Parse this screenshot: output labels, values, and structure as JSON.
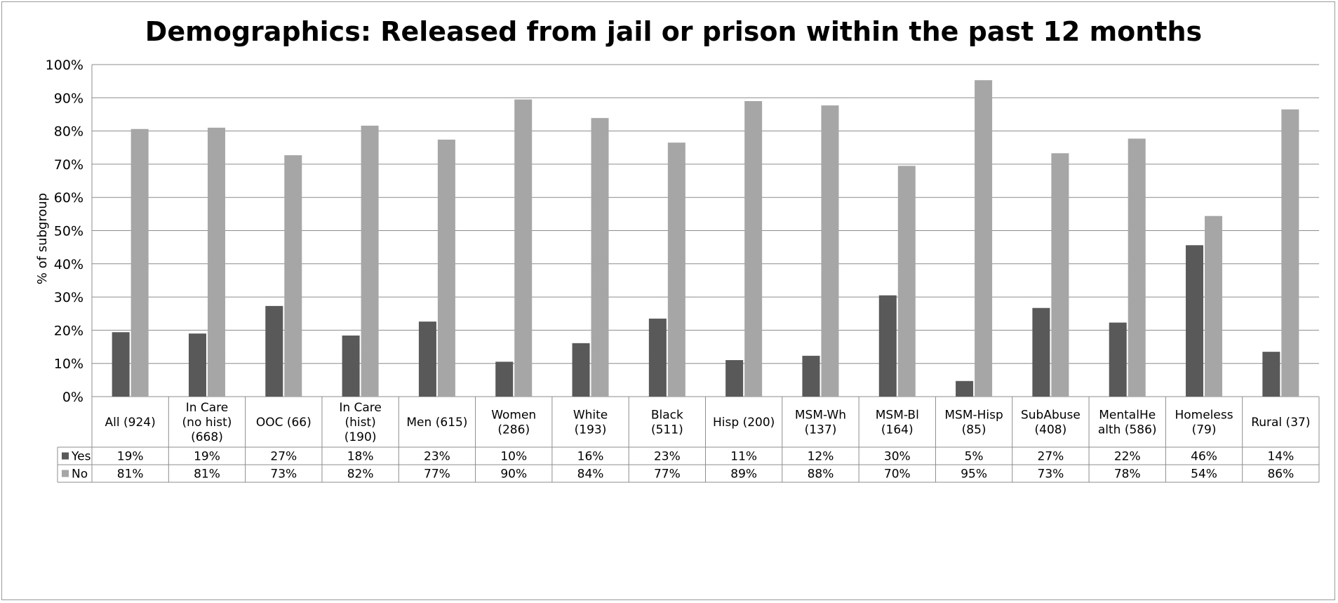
{
  "chart_data": {
    "type": "bar",
    "title": "Demographics: Released from jail or prison within the past 12 months",
    "ylabel": "% of subgroup",
    "xlabel": "",
    "ylim": [
      0,
      100
    ],
    "y_ticks": [
      "0%",
      "10%",
      "20%",
      "30%",
      "40%",
      "50%",
      "60%",
      "70%",
      "80%",
      "90%",
      "100%"
    ],
    "grid": true,
    "legend": "data-table-left",
    "categories": [
      [
        "All (924)"
      ],
      [
        "In Care",
        "(no hist)",
        "(668)"
      ],
      [
        "OOC (66)"
      ],
      [
        "In Care",
        "(hist)",
        "(190)"
      ],
      [
        "Men (615)"
      ],
      [
        "Women",
        "(286)"
      ],
      [
        "White",
        "(193)"
      ],
      [
        "Black",
        "(511)"
      ],
      [
        "Hisp (200)"
      ],
      [
        "MSM-Wh",
        "(137)"
      ],
      [
        "MSM-Bl",
        "(164)"
      ],
      [
        "MSM-Hisp",
        "(85)"
      ],
      [
        "SubAbuse",
        "(408)"
      ],
      [
        "MentalHe",
        "alth (586)"
      ],
      [
        "Homeless",
        "(79)"
      ],
      [
        "Rural (37)"
      ]
    ],
    "series": [
      {
        "name": "Yes",
        "color": "#595959",
        "values": [
          19.4,
          19.0,
          27.3,
          18.4,
          22.6,
          10.5,
          16.1,
          23.5,
          11.0,
          12.3,
          30.5,
          4.7,
          26.7,
          22.3,
          45.6,
          13.5
        ],
        "labels": [
          "19%",
          "19%",
          "27%",
          "18%",
          "23%",
          "10%",
          "16%",
          "23%",
          "11%",
          "12%",
          "30%",
          "5%",
          "27%",
          "22%",
          "46%",
          "14%"
        ]
      },
      {
        "name": "No",
        "color": "#a6a6a6",
        "values": [
          80.6,
          81.0,
          72.7,
          81.6,
          77.4,
          89.5,
          83.9,
          76.5,
          89.0,
          87.7,
          69.5,
          95.3,
          73.3,
          77.7,
          54.4,
          86.5
        ],
        "labels": [
          "81%",
          "81%",
          "73%",
          "82%",
          "77%",
          "90%",
          "84%",
          "77%",
          "89%",
          "88%",
          "70%",
          "95%",
          "73%",
          "78%",
          "54%",
          "86%"
        ]
      }
    ]
  }
}
